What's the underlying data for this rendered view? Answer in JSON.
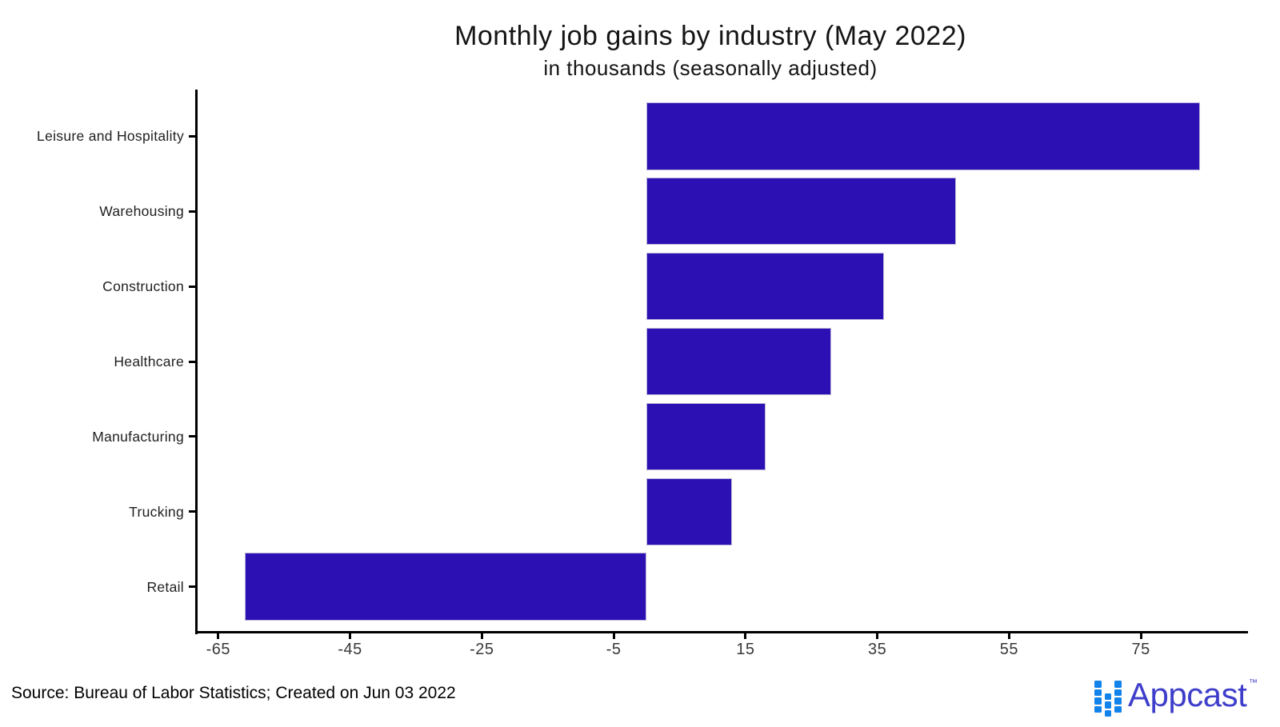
{
  "header": {
    "title": "Monthly job gains by industry (May 2022)",
    "subtitle": "in thousands (seasonally adjusted)"
  },
  "footer": {
    "source": "Source: Bureau of Labor Statistics; Created on Jun 03 2022"
  },
  "logo": {
    "wordmark": "Appcast",
    "trademark": "TM",
    "square_color": "#1283ea",
    "wordmark_color": "#3e3ecb"
  },
  "chart_data": {
    "type": "bar",
    "orientation": "horizontal",
    "title": "Monthly job gains by industry (May 2022)",
    "subtitle": "in thousands (seasonally adjusted)",
    "categories": [
      "Leisure and Hospitality",
      "Warehousing",
      "Construction",
      "Healthcare",
      "Manufacturing",
      "Trucking",
      "Retail"
    ],
    "values": [
      84,
      47,
      36,
      28,
      18,
      13,
      -61
    ],
    "x_ticks": [
      -65,
      -45,
      -25,
      -5,
      15,
      35,
      55,
      75
    ],
    "xlim": [
      -68.25,
      91.25
    ],
    "bar_color": "#2d10b3",
    "axis_color": "#000000",
    "grid": false,
    "legend": false,
    "xlabel": "",
    "ylabel": ""
  }
}
